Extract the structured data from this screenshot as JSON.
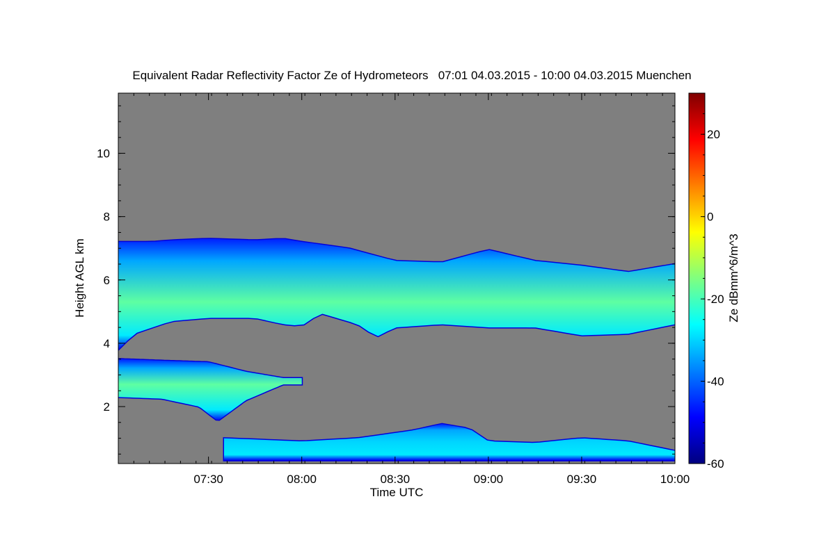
{
  "chart_data": {
    "type": "heatmap",
    "title": "Equivalent Radar Reflectivity Factor Ze of Hydrometeors   07:01 04.03.2015 - 10:00 04.03.2015 Muenchen",
    "xlabel": "Time UTC",
    "ylabel": "Height AGL km",
    "colorbar_label": "Ze dBmm^6/m^3",
    "x_range": [
      "07:01",
      "10:00"
    ],
    "x_ticks": [
      "07:30",
      "08:00",
      "08:30",
      "09:00",
      "09:30",
      "10:00"
    ],
    "y_range": [
      0.2,
      11.9
    ],
    "y_ticks": [
      "2",
      "4",
      "6",
      "8",
      "10"
    ],
    "colorbar_range": [
      -60,
      30
    ],
    "colorbar_ticks": [
      "-60",
      "-40",
      "-20",
      "0",
      "20"
    ],
    "colormap": "jet",
    "background_color": "#7f7f7f",
    "regions": [
      {
        "name": "upper cloud layer",
        "time_start": "07:01",
        "time_end": "10:00",
        "top_km": [
          [
            7.2,
            7.2
          ],
          [
            7.3,
            7.25
          ],
          [
            7.5,
            7.3
          ],
          [
            7.75,
            7.25
          ],
          [
            7.9,
            7.3
          ],
          [
            8.0,
            7.2
          ],
          [
            8.25,
            7.0
          ],
          [
            8.5,
            6.6
          ],
          [
            8.75,
            6.55
          ],
          [
            9.0,
            6.95
          ],
          [
            9.25,
            6.6
          ],
          [
            9.5,
            6.45
          ],
          [
            9.75,
            6.25
          ],
          [
            10.0,
            6.5
          ]
        ],
        "base_km": [
          [
            7.02,
            3.8
          ],
          [
            7.1,
            4.3
          ],
          [
            7.3,
            4.7
          ],
          [
            7.5,
            4.8
          ],
          [
            7.75,
            4.8
          ],
          [
            7.9,
            4.6
          ],
          [
            8.0,
            4.55
          ],
          [
            8.1,
            4.95
          ],
          [
            8.3,
            4.6
          ],
          [
            8.4,
            4.2
          ],
          [
            8.5,
            4.5
          ],
          [
            8.75,
            4.6
          ],
          [
            9.0,
            4.5
          ],
          [
            9.25,
            4.5
          ],
          [
            9.5,
            4.25
          ],
          [
            9.75,
            4.3
          ],
          [
            10.0,
            4.6
          ]
        ],
        "core_ze_dbz": -18,
        "core_height_km": 5.3
      },
      {
        "name": "middle cloud layer",
        "time_start": "07:01",
        "time_end": "08:00",
        "top_km": [
          [
            7.02,
            3.5
          ],
          [
            7.25,
            3.45
          ],
          [
            7.5,
            3.4
          ],
          [
            7.7,
            3.1
          ],
          [
            7.9,
            2.9
          ]
        ],
        "base_km": [
          [
            7.02,
            2.3
          ],
          [
            7.25,
            2.25
          ],
          [
            7.45,
            2.0
          ],
          [
            7.55,
            1.55
          ],
          [
            7.7,
            2.2
          ],
          [
            7.9,
            2.7
          ]
        ],
        "core_ze_dbz": -18,
        "core_height_km": 2.7
      },
      {
        "name": "low-level echoes",
        "time_start": "07:35",
        "time_end": "10:00",
        "top_km": [
          [
            7.58,
            1.0
          ],
          [
            8.0,
            0.9
          ],
          [
            8.3,
            1.0
          ],
          [
            8.6,
            1.25
          ],
          [
            8.75,
            1.45
          ],
          [
            8.9,
            1.3
          ],
          [
            9.0,
            0.9
          ],
          [
            9.25,
            0.85
          ],
          [
            9.5,
            1.0
          ],
          [
            9.75,
            0.9
          ],
          [
            10.0,
            0.6
          ]
        ],
        "base_km": [
          [
            7.58,
            0.3
          ],
          [
            10.0,
            0.3
          ]
        ],
        "core_ze_dbz": -30,
        "core_height_km": 0.9
      }
    ]
  }
}
